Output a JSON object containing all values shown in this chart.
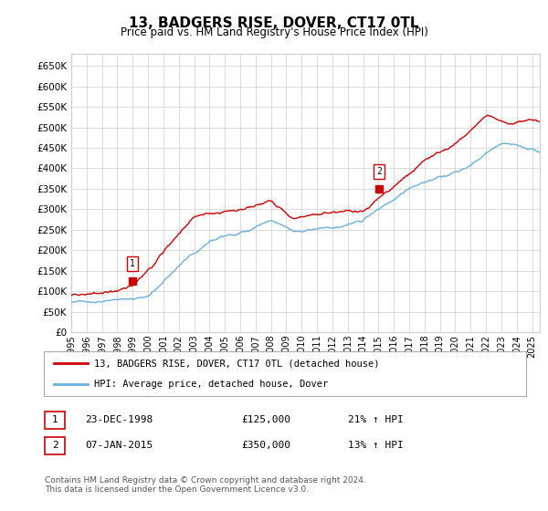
{
  "title": "13, BADGERS RISE, DOVER, CT17 0TL",
  "subtitle": "Price paid vs. HM Land Registry's House Price Index (HPI)",
  "ytick_values": [
    0,
    50000,
    100000,
    150000,
    200000,
    250000,
    300000,
    350000,
    400000,
    450000,
    500000,
    550000,
    600000,
    650000
  ],
  "ylim": [
    0,
    680000
  ],
  "xlim_start": 1995.0,
  "xlim_end": 2025.5,
  "hpi_color": "#6ab0e0",
  "price_color": "#cc0000",
  "grid_color": "#cccccc",
  "background_color": "#ffffff",
  "sale1_year": 1998.98,
  "sale1_price": 125000,
  "sale2_year": 2015.03,
  "sale2_price": 350000,
  "legend_line1": "13, BADGERS RISE, DOVER, CT17 0TL (detached house)",
  "legend_line2": "HPI: Average price, detached house, Dover",
  "table_row1": [
    "1",
    "23-DEC-1998",
    "£125,000",
    "21% ↑ HPI"
  ],
  "table_row2": [
    "2",
    "07-JAN-2015",
    "£350,000",
    "13% ↑ HPI"
  ],
  "footnote": "Contains HM Land Registry data © Crown copyright and database right 2024.\nThis data is licensed under the Open Government Licence v3.0.",
  "xtick_years": [
    1995,
    1996,
    1997,
    1998,
    1999,
    2000,
    2001,
    2002,
    2003,
    2004,
    2005,
    2006,
    2007,
    2008,
    2009,
    2010,
    2011,
    2012,
    2013,
    2014,
    2015,
    2016,
    2017,
    2018,
    2019,
    2020,
    2021,
    2022,
    2023,
    2024,
    2025
  ]
}
